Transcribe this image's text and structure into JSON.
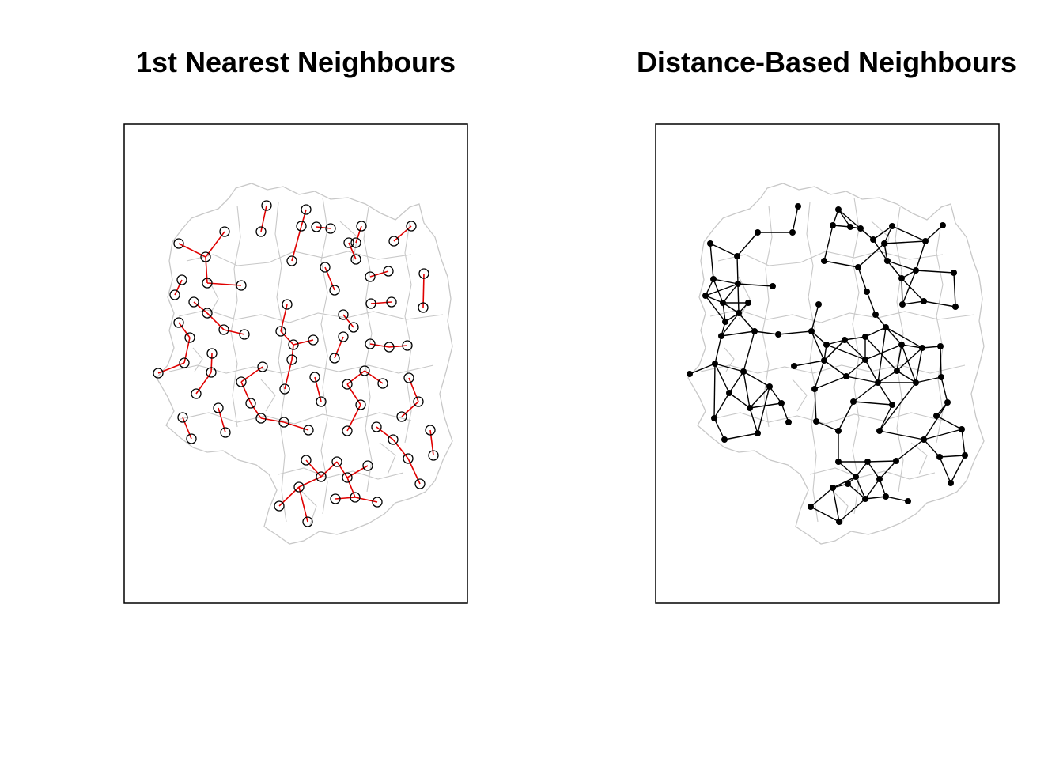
{
  "panels": [
    {
      "title": "1st Nearest Neighbours",
      "style": {
        "line_color": "#e00000",
        "marker": "open-circle"
      }
    },
    {
      "title": "Distance-Based Neighbours",
      "style": {
        "line_color": "#000000",
        "marker": "filled-dot"
      }
    }
  ],
  "colors": {
    "boundary": "#c8c8c8",
    "frame": "#000000",
    "nn_line": "#e00000",
    "dist_line": "#000000"
  }
}
